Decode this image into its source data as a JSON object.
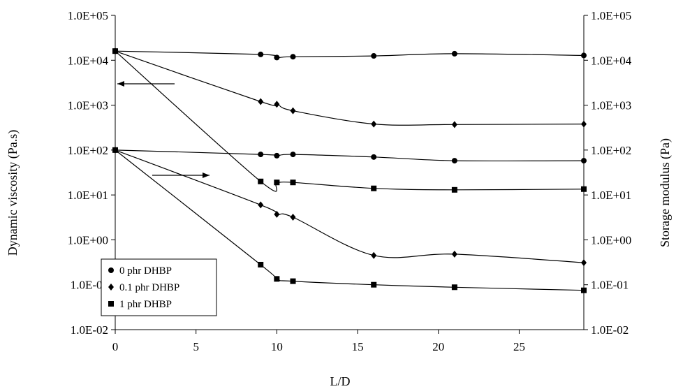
{
  "chart_data": {
    "type": "scatter",
    "title": "",
    "xlabel": "L/D",
    "ylabel_left": "Dynamic viscosity (Pa.s)",
    "ylabel_right": "Storage modulus (Pa)",
    "xlim": [
      0,
      29
    ],
    "ylim": [
      0.01,
      100000
    ],
    "yscale": "log",
    "grid": false,
    "legend_position": "bottom-left",
    "x_ticks": [
      0,
      5,
      10,
      15,
      20,
      25
    ],
    "x_tick_labels": [
      "0",
      "5",
      "10",
      "15",
      "20",
      "25"
    ],
    "y_ticks": [
      0.01,
      0.1,
      1,
      10,
      100,
      1000,
      10000,
      100000
    ],
    "y_tick_labels": [
      "1.0E-02",
      "1.0E-01",
      "1.0E+00",
      "1.0E+01",
      "1.0E+02",
      "1.0E+03",
      "1.0E+04",
      "1.0E+05"
    ],
    "legend": [
      {
        "label": "0 phr DHBP",
        "marker": "circle"
      },
      {
        "label": "0.1 phr DHBP",
        "marker": "diamond"
      },
      {
        "label": "1 phr DHBP",
        "marker": "square"
      }
    ],
    "series": [
      {
        "legend_index": 0,
        "marker": "circle",
        "axis": "left",
        "x": [
          0,
          9,
          10,
          11,
          16,
          21,
          29
        ],
        "y": [
          16000,
          13500,
          11500,
          12000,
          12500,
          14000,
          12800
        ]
      },
      {
        "legend_index": 1,
        "marker": "diamond",
        "axis": "left",
        "x": [
          0,
          9,
          10,
          11,
          16,
          21,
          29
        ],
        "y": [
          16000,
          1200,
          1050,
          750,
          380,
          370,
          380
        ]
      },
      {
        "legend_index": 2,
        "marker": "square",
        "axis": "left",
        "x": [
          0,
          9,
          10,
          11,
          16,
          21,
          29
        ],
        "y": [
          16000,
          20,
          19,
          19,
          14,
          13,
          13.5
        ]
      },
      {
        "legend_index": 0,
        "marker": "circle",
        "axis": "right",
        "x": [
          0,
          9,
          10,
          11,
          16,
          21,
          29
        ],
        "y": [
          100,
          80,
          75,
          80,
          70,
          58,
          58
        ]
      },
      {
        "legend_index": 1,
        "marker": "diamond",
        "axis": "right",
        "x": [
          0,
          9,
          10,
          11,
          16,
          21,
          29
        ],
        "y": [
          100,
          6,
          3.7,
          3.2,
          0.45,
          0.48,
          0.31
        ]
      },
      {
        "legend_index": 2,
        "marker": "square",
        "axis": "right",
        "x": [
          0,
          9,
          10,
          11,
          16,
          21,
          29
        ],
        "y": [
          100,
          0.28,
          0.135,
          0.12,
          0.1,
          0.088,
          0.075
        ]
      }
    ],
    "annotations": [
      {
        "type": "arrow",
        "direction": "left",
        "meaning": "points to left axis"
      },
      {
        "type": "arrow",
        "direction": "right",
        "meaning": "points to right axis"
      }
    ]
  }
}
